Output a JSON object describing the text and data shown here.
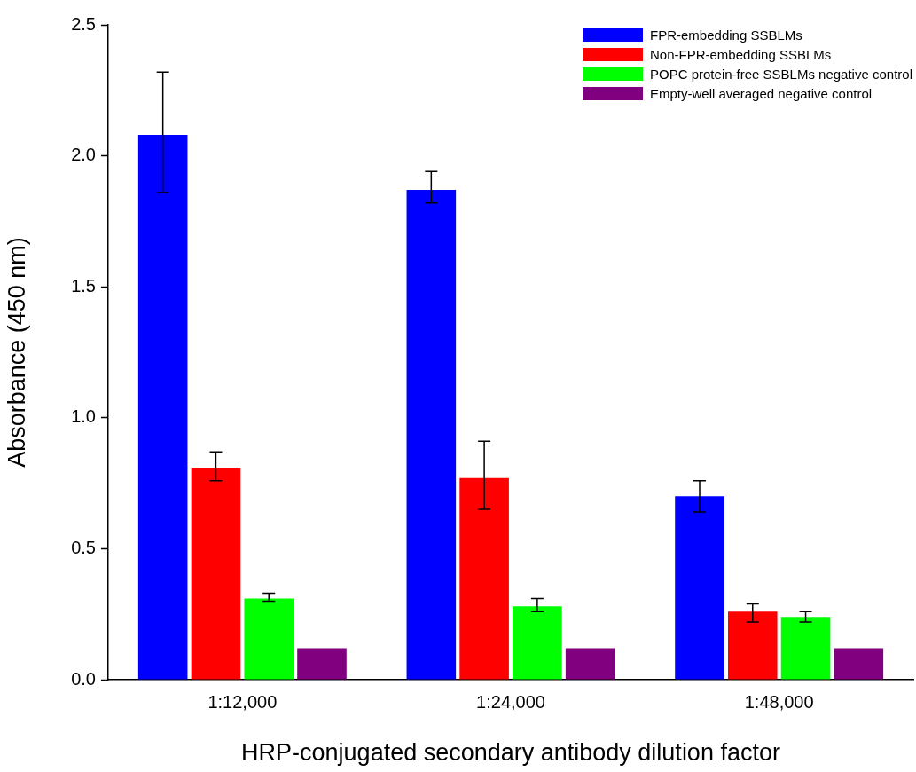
{
  "chart_data": {
    "type": "bar",
    "xlabel": "HRP-conjugated secondary antibody dilution factor",
    "ylabel": "Absorbance (450 nm)",
    "categories": [
      "1:12,000",
      "1:24,000",
      "1:48,000"
    ],
    "series": [
      {
        "name": "FPR-embedding SSBLMs",
        "color": "#0000ff",
        "values": [
          2.08,
          1.87,
          0.7
        ],
        "errors": [
          [
            1.86,
            2.32
          ],
          [
            1.82,
            1.94
          ],
          [
            0.64,
            0.76
          ]
        ]
      },
      {
        "name": "Non-FPR-embedding SSBLMs",
        "color": "#ff0000",
        "values": [
          0.81,
          0.77,
          0.26
        ],
        "errors": [
          [
            0.76,
            0.87
          ],
          [
            0.65,
            0.91
          ],
          [
            0.22,
            0.29
          ]
        ]
      },
      {
        "name": "POPC protein-free SSBLMs negative control",
        "color": "#00ff00",
        "values": [
          0.31,
          0.28,
          0.24
        ],
        "errors": [
          [
            0.3,
            0.33
          ],
          [
            0.26,
            0.31
          ],
          [
            0.22,
            0.26
          ]
        ]
      },
      {
        "name": "Empty-well averaged negative control",
        "color": "#800080",
        "values": [
          0.12,
          0.12,
          0.12
        ]
      }
    ],
    "ylim": [
      0,
      2.5
    ],
    "yticks": [
      {
        "value": 0,
        "label": "0.0"
      },
      {
        "value": 0.5,
        "label": "0.5"
      },
      {
        "value": 1,
        "label": "1.0"
      },
      {
        "value": 1.5,
        "label": "1.5"
      },
      {
        "value": 2,
        "label": "2.0"
      },
      {
        "value": 2.5,
        "label": "2.5"
      }
    ],
    "grid": false,
    "legend": "top right"
  }
}
